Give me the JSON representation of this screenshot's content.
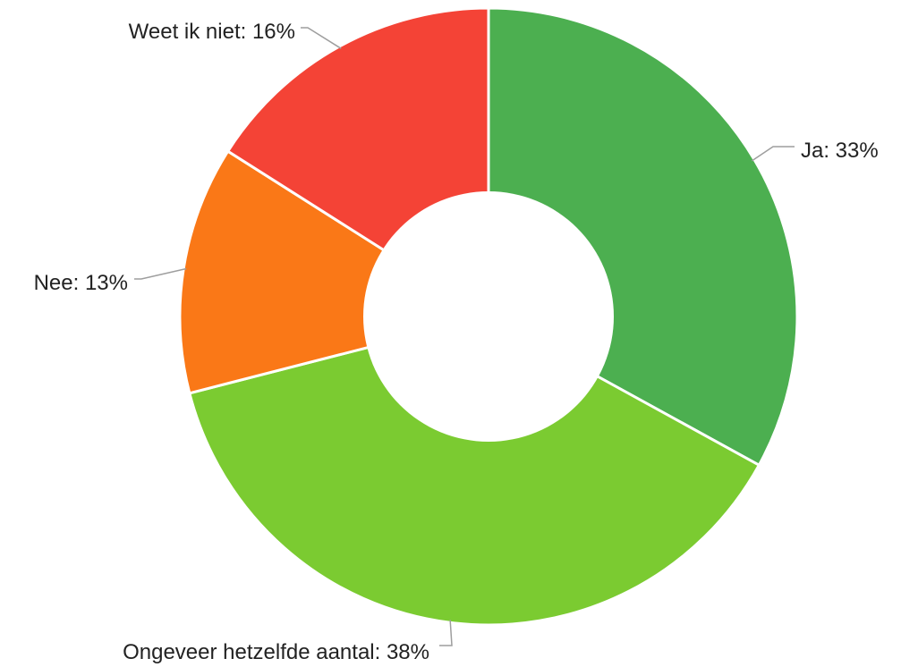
{
  "chart_data": {
    "type": "pie",
    "donut": true,
    "title": "",
    "legend": "none",
    "slices": [
      {
        "label": "Ja: 33%",
        "name": "Ja",
        "value": 33,
        "color": "#4caf50"
      },
      {
        "label": "Ongeveer hetzelfde aantal: 38%",
        "name": "Ongeveer hetzelfde aantal",
        "value": 38,
        "color": "#7bcb31"
      },
      {
        "label": "Nee: 13%",
        "name": "Nee",
        "value": 13,
        "color": "#fa7817"
      },
      {
        "label": "Weet ik niet: 16%",
        "name": "Weet ik niet",
        "value": 16,
        "color": "#f44336"
      }
    ]
  }
}
